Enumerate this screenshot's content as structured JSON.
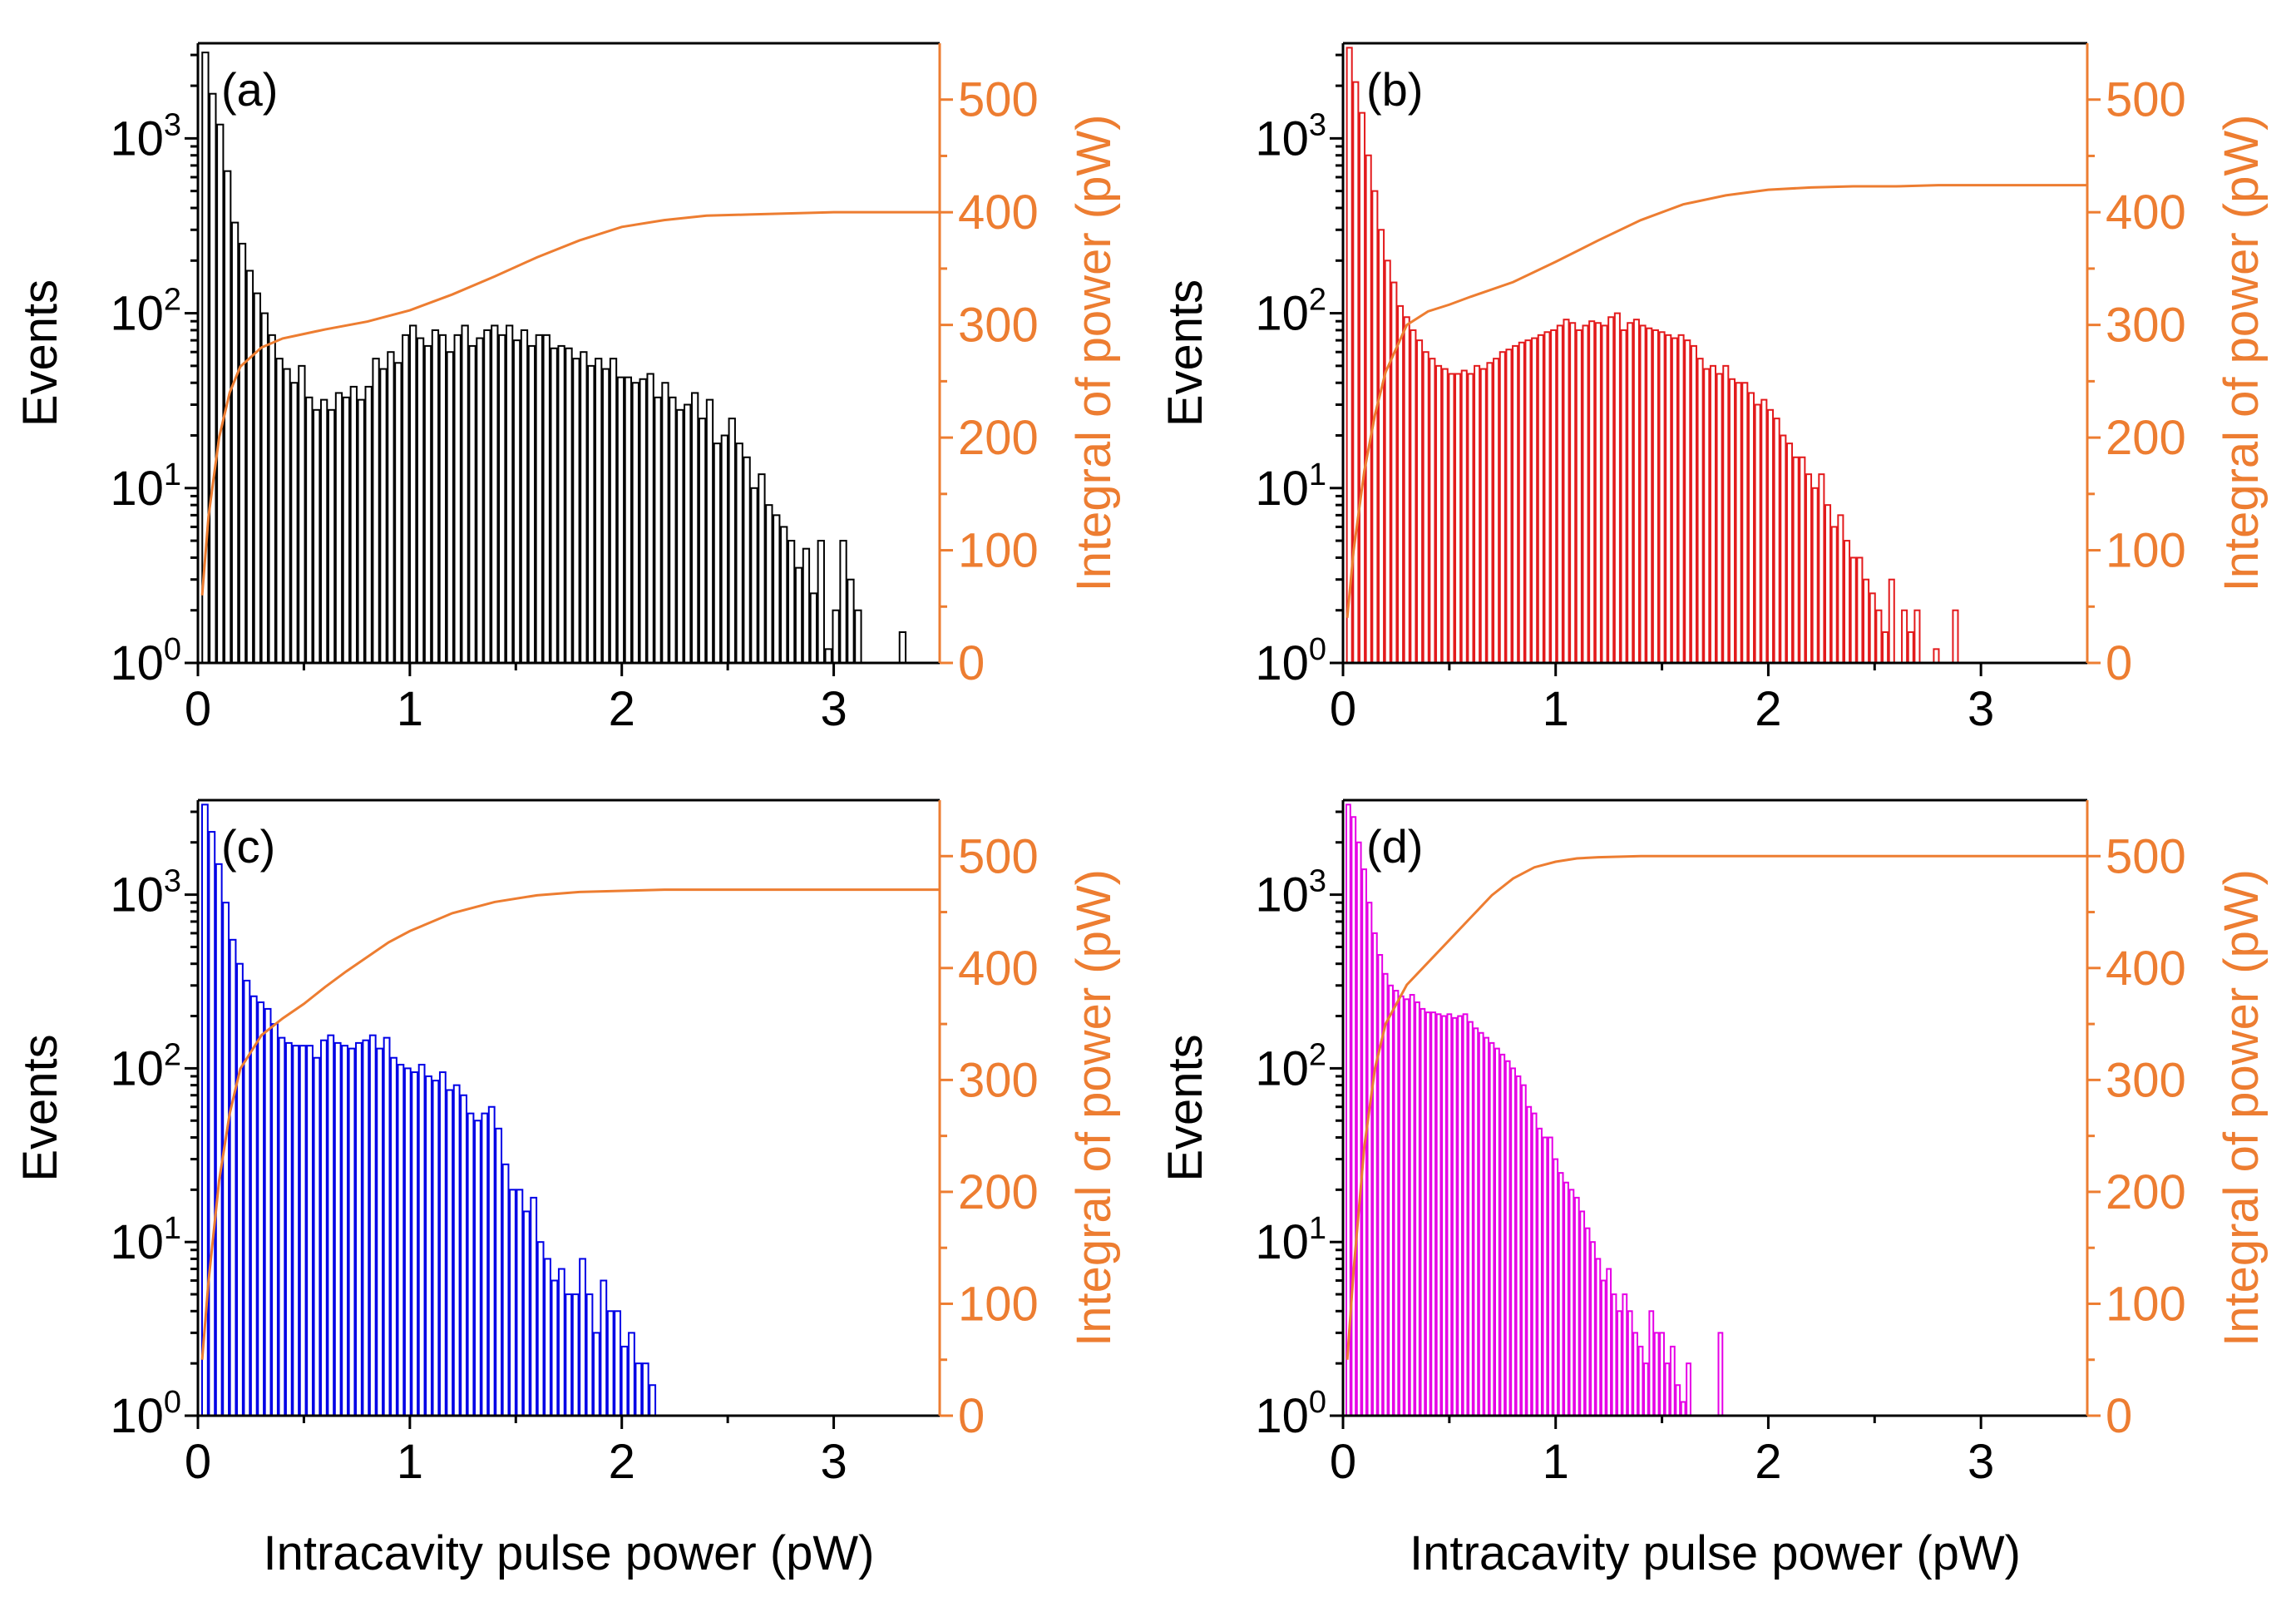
{
  "colors": {
    "axis": "#000000",
    "integral_line": "#ED7D31",
    "panel_a": "#000000",
    "panel_b": "#E31A1C",
    "panel_c": "#0000E6",
    "panel_d": "#E600E6"
  },
  "chart_data": [
    {
      "type": "bar+line",
      "panel_label": "(a)",
      "bar_color": "#000000",
      "xlabel": "",
      "ylabel": "Events",
      "y2label": "Integral of power (pW)",
      "xlim": [
        0,
        3.5
      ],
      "xticks": [
        "0",
        "1",
        "2",
        "3"
      ],
      "yscale": "log",
      "ylim": [
        1,
        3500
      ],
      "yticks": [
        {
          "base": "10",
          "exp": "0",
          "value": 1
        },
        {
          "base": "10",
          "exp": "1",
          "value": 10
        },
        {
          "base": "10",
          "exp": "2",
          "value": 100
        },
        {
          "base": "10",
          "exp": "3",
          "value": 1000
        }
      ],
      "y2lim": [
        0,
        550
      ],
      "y2ticks": [
        "0",
        "100",
        "200",
        "300",
        "400",
        "500"
      ],
      "bin_width": 0.035,
      "histogram": {
        "x": [
          0.035,
          0.07,
          0.105,
          0.14,
          0.175,
          0.21,
          0.245,
          0.28,
          0.315,
          0.35,
          0.385,
          0.42,
          0.455,
          0.49,
          0.525,
          0.56,
          0.595,
          0.63,
          0.665,
          0.7,
          0.735,
          0.77,
          0.805,
          0.84,
          0.875,
          0.91,
          0.945,
          0.98,
          1.015,
          1.05,
          1.085,
          1.12,
          1.155,
          1.19,
          1.225,
          1.26,
          1.295,
          1.33,
          1.365,
          1.4,
          1.435,
          1.47,
          1.505,
          1.54,
          1.575,
          1.61,
          1.645,
          1.68,
          1.715,
          1.75,
          1.785,
          1.82,
          1.855,
          1.89,
          1.925,
          1.96,
          1.995,
          2.03,
          2.065,
          2.1,
          2.135,
          2.17,
          2.205,
          2.24,
          2.275,
          2.31,
          2.345,
          2.38,
          2.415,
          2.45,
          2.485,
          2.52,
          2.555,
          2.59,
          2.625,
          2.66,
          2.695,
          2.73,
          2.765,
          2.8,
          2.835,
          2.87,
          2.905,
          2.94,
          2.975,
          3.01,
          3.045,
          3.08,
          3.115,
          3.15,
          3.29,
          3.325,
          3.36,
          3.43,
          3.465
        ],
        "values": [
          3100,
          1800,
          1200,
          650,
          330,
          250,
          175,
          130,
          100,
          75,
          55,
          48,
          40,
          50,
          33,
          28,
          32,
          28,
          35,
          33,
          38,
          32,
          38,
          55,
          48,
          60,
          52,
          75,
          85,
          72,
          65,
          80,
          75,
          60,
          75,
          85,
          65,
          72,
          80,
          85,
          75,
          85,
          70,
          80,
          65,
          75,
          75,
          63,
          65,
          63,
          55,
          60,
          50,
          55,
          48,
          55,
          43,
          43,
          40,
          42,
          45,
          33,
          40,
          33,
          28,
          30,
          35,
          25,
          32,
          18,
          20,
          25,
          18,
          15,
          10,
          12,
          8,
          7,
          6,
          5,
          3.5,
          4.5,
          2.5,
          5,
          1.2,
          2,
          5,
          3,
          2,
          1,
          1,
          1.5,
          1,
          1,
          1
        ]
      },
      "integral": {
        "x": [
          0.02,
          0.05,
          0.1,
          0.15,
          0.2,
          0.3,
          0.4,
          0.5,
          0.6,
          0.8,
          1.0,
          1.2,
          1.4,
          1.6,
          1.8,
          2.0,
          2.2,
          2.4,
          2.6,
          2.8,
          3.0,
          3.5
        ],
        "y": [
          60,
          130,
          200,
          240,
          263,
          280,
          288,
          292,
          296,
          303,
          313,
          327,
          343,
          360,
          375,
          387,
          393,
          397,
          398,
          399,
          400,
          400
        ]
      }
    },
    {
      "type": "bar+line",
      "panel_label": "(b)",
      "bar_color": "#E31A1C",
      "xlabel": "",
      "ylabel": "Events",
      "y2label": "Integral of power (pW)",
      "xlim": [
        0,
        3.5
      ],
      "xticks": [
        "0",
        "1",
        "2",
        "3"
      ],
      "yscale": "log",
      "ylim": [
        1,
        3500
      ],
      "yticks": [
        {
          "base": "10",
          "exp": "0",
          "value": 1
        },
        {
          "base": "10",
          "exp": "1",
          "value": 10
        },
        {
          "base": "10",
          "exp": "2",
          "value": 100
        },
        {
          "base": "10",
          "exp": "3",
          "value": 1000
        }
      ],
      "y2lim": [
        0,
        550
      ],
      "y2ticks": [
        "0",
        "100",
        "200",
        "300",
        "400",
        "500"
      ],
      "bin_width": 0.03,
      "histogram": {
        "x": [
          0.03,
          0.06,
          0.09,
          0.12,
          0.15,
          0.18,
          0.21,
          0.24,
          0.27,
          0.3,
          0.33,
          0.36,
          0.39,
          0.42,
          0.45,
          0.48,
          0.51,
          0.54,
          0.57,
          0.6,
          0.63,
          0.66,
          0.69,
          0.72,
          0.75,
          0.78,
          0.81,
          0.84,
          0.87,
          0.9,
          0.93,
          0.96,
          0.99,
          1.02,
          1.05,
          1.08,
          1.11,
          1.14,
          1.17,
          1.2,
          1.23,
          1.26,
          1.29,
          1.32,
          1.35,
          1.38,
          1.41,
          1.44,
          1.47,
          1.5,
          1.53,
          1.56,
          1.59,
          1.62,
          1.65,
          1.68,
          1.71,
          1.74,
          1.77,
          1.8,
          1.83,
          1.86,
          1.89,
          1.92,
          1.95,
          1.98,
          2.01,
          2.04,
          2.07,
          2.1,
          2.13,
          2.16,
          2.19,
          2.22,
          2.25,
          2.28,
          2.31,
          2.34,
          2.37,
          2.4,
          2.43,
          2.46,
          2.49,
          2.52,
          2.55,
          2.58,
          2.61,
          2.64,
          2.67,
          2.7,
          2.73,
          2.76,
          2.79,
          2.82,
          2.85,
          2.88,
          2.91,
          2.94,
          2.97,
          3.03,
          3.15,
          3.36
        ],
        "values": [
          3300,
          2100,
          1400,
          800,
          500,
          300,
          200,
          150,
          110,
          95,
          80,
          70,
          60,
          55,
          50,
          48,
          45,
          45,
          47,
          45,
          50,
          48,
          52,
          55,
          60,
          62,
          65,
          68,
          70,
          72,
          75,
          78,
          80,
          85,
          92,
          88,
          80,
          85,
          90,
          88,
          85,
          95,
          100,
          80,
          88,
          92,
          85,
          82,
          80,
          78,
          75,
          72,
          75,
          70,
          65,
          55,
          48,
          50,
          45,
          50,
          42,
          40,
          40,
          35,
          30,
          32,
          28,
          25,
          20,
          18,
          15,
          15,
          12,
          10,
          12,
          8,
          6,
          7,
          5,
          4,
          4,
          3,
          2.5,
          2,
          1.5,
          3,
          1,
          2,
          1.5,
          2,
          1,
          1,
          1.2,
          1,
          1,
          2,
          1,
          1,
          1,
          1,
          1,
          1
        ]
      },
      "integral": {
        "x": [
          0.02,
          0.05,
          0.1,
          0.15,
          0.2,
          0.3,
          0.4,
          0.5,
          0.6,
          0.8,
          1.0,
          1.2,
          1.4,
          1.6,
          1.8,
          2.0,
          2.2,
          2.4,
          2.6,
          2.8,
          3.0,
          3.5
        ],
        "y": [
          40,
          100,
          170,
          220,
          258,
          300,
          312,
          318,
          325,
          338,
          356,
          375,
          393,
          407,
          415,
          420,
          422,
          423,
          423,
          424,
          424,
          424
        ]
      }
    },
    {
      "type": "bar+line",
      "panel_label": "(c)",
      "bar_color": "#0000E6",
      "xlabel": "Intracavity pulse power (pW)",
      "ylabel": "Events",
      "y2label": "Integral of power (pW)",
      "xlim": [
        0,
        3.5
      ],
      "xticks": [
        "0",
        "1",
        "2",
        "3"
      ],
      "yscale": "log",
      "ylim": [
        1,
        3500
      ],
      "yticks": [
        {
          "base": "10",
          "exp": "0",
          "value": 1
        },
        {
          "base": "10",
          "exp": "1",
          "value": 10
        },
        {
          "base": "10",
          "exp": "2",
          "value": 100
        },
        {
          "base": "10",
          "exp": "3",
          "value": 1000
        }
      ],
      "y2lim": [
        0,
        550
      ],
      "y2ticks": [
        "0",
        "100",
        "200",
        "300",
        "400",
        "500"
      ],
      "bin_width": 0.033,
      "histogram": {
        "x": [
          0.033,
          0.066,
          0.099,
          0.132,
          0.165,
          0.198,
          0.231,
          0.264,
          0.297,
          0.33,
          0.363,
          0.396,
          0.429,
          0.462,
          0.495,
          0.528,
          0.561,
          0.594,
          0.627,
          0.66,
          0.693,
          0.726,
          0.759,
          0.792,
          0.825,
          0.858,
          0.891,
          0.924,
          0.957,
          0.99,
          1.023,
          1.056,
          1.089,
          1.122,
          1.155,
          1.188,
          1.221,
          1.254,
          1.287,
          1.32,
          1.353,
          1.386,
          1.419,
          1.452,
          1.485,
          1.518,
          1.551,
          1.584,
          1.617,
          1.65,
          1.683,
          1.716,
          1.749,
          1.782,
          1.815,
          1.848,
          1.881,
          1.914,
          1.947,
          1.98,
          2.013,
          2.046,
          2.079,
          2.112,
          2.145,
          2.178,
          2.343,
          2.64
        ],
        "values": [
          3300,
          2300,
          1500,
          900,
          550,
          400,
          320,
          260,
          240,
          220,
          180,
          150,
          140,
          135,
          135,
          135,
          115,
          145,
          155,
          140,
          135,
          130,
          140,
          145,
          155,
          130,
          150,
          115,
          105,
          100,
          95,
          105,
          90,
          85,
          95,
          75,
          80,
          70,
          55,
          50,
          55,
          60,
          45,
          28,
          20,
          20,
          15,
          18,
          10,
          8,
          6,
          7,
          5,
          5,
          8,
          5,
          3,
          6,
          4,
          4,
          2.5,
          3,
          2,
          2,
          1.5,
          1,
          1,
          1
        ]
      },
      "integral": {
        "x": [
          0.02,
          0.05,
          0.1,
          0.15,
          0.2,
          0.3,
          0.4,
          0.5,
          0.6,
          0.7,
          0.8,
          0.9,
          1.0,
          1.2,
          1.4,
          1.6,
          1.8,
          2.0,
          2.2,
          2.5,
          3.0,
          3.5
        ],
        "y": [
          50,
          120,
          210,
          270,
          310,
          340,
          355,
          368,
          383,
          397,
          410,
          423,
          433,
          449,
          459,
          465,
          468,
          469,
          470,
          470,
          470,
          470
        ]
      }
    },
    {
      "type": "bar+line",
      "panel_label": "(d)",
      "bar_color": "#E600E6",
      "xlabel": "Intracavity pulse power (pW)",
      "ylabel": "Events",
      "y2label": "Integral of power (pW)",
      "xlim": [
        0,
        3.5
      ],
      "xticks": [
        "0",
        "1",
        "2",
        "3"
      ],
      "yscale": "log",
      "ylim": [
        1,
        3500
      ],
      "yticks": [
        {
          "base": "10",
          "exp": "0",
          "value": 1
        },
        {
          "base": "10",
          "exp": "1",
          "value": 10
        },
        {
          "base": "10",
          "exp": "2",
          "value": 100
        },
        {
          "base": "10",
          "exp": "3",
          "value": 1000
        }
      ],
      "y2lim": [
        0,
        550
      ],
      "y2ticks": [
        "0",
        "100",
        "200",
        "300",
        "400",
        "500"
      ],
      "bin_width": 0.025,
      "histogram": {
        "x": [
          0.025,
          0.05,
          0.075,
          0.1,
          0.125,
          0.15,
          0.175,
          0.2,
          0.225,
          0.25,
          0.275,
          0.3,
          0.325,
          0.35,
          0.375,
          0.4,
          0.425,
          0.45,
          0.475,
          0.5,
          0.525,
          0.55,
          0.575,
          0.6,
          0.625,
          0.65,
          0.675,
          0.7,
          0.725,
          0.75,
          0.775,
          0.8,
          0.825,
          0.85,
          0.875,
          0.9,
          0.925,
          0.95,
          0.975,
          1.0,
          1.025,
          1.05,
          1.075,
          1.1,
          1.125,
          1.15,
          1.175,
          1.2,
          1.225,
          1.25,
          1.275,
          1.3,
          1.325,
          1.35,
          1.375,
          1.4,
          1.425,
          1.45,
          1.475,
          1.5,
          1.525,
          1.55,
          1.575,
          1.6,
          1.625,
          1.65,
          1.675,
          1.7,
          1.725,
          1.775,
          2.125
        ],
        "values": [
          3300,
          2800,
          2000,
          1400,
          900,
          600,
          450,
          350,
          300,
          280,
          260,
          250,
          265,
          240,
          220,
          210,
          210,
          205,
          200,
          205,
          195,
          200,
          205,
          185,
          170,
          160,
          150,
          140,
          130,
          120,
          110,
          100,
          90,
          80,
          60,
          55,
          45,
          40,
          40,
          30,
          25,
          22,
          20,
          18,
          15,
          12,
          10,
          8,
          6,
          7,
          5,
          4,
          5,
          4,
          3,
          2.5,
          2,
          4,
          3,
          3,
          2,
          2.5,
          1.5,
          1.2,
          2,
          1,
          1,
          1,
          1,
          3,
          1
        ]
      },
      "integral": {
        "x": [
          0.02,
          0.05,
          0.1,
          0.15,
          0.2,
          0.3,
          0.4,
          0.5,
          0.6,
          0.7,
          0.8,
          0.9,
          1.0,
          1.1,
          1.2,
          1.4,
          1.6,
          2.0,
          2.5,
          3.0,
          3.5
        ],
        "y": [
          50,
          130,
          240,
          310,
          350,
          385,
          405,
          425,
          445,
          465,
          480,
          490,
          495,
          498,
          499,
          500,
          500,
          500,
          500,
          500,
          500
        ]
      }
    }
  ]
}
